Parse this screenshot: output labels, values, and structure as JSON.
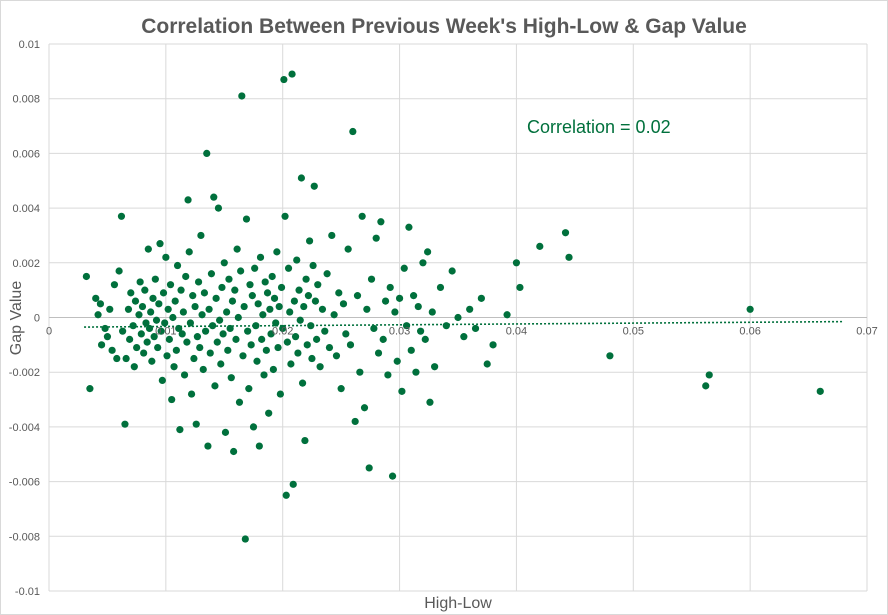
{
  "chart_data": {
    "type": "scatter",
    "title": "Correlation Between Previous Week's High-Low & Gap Value",
    "xlabel": "High-Low",
    "ylabel": "Gap Value",
    "xlim": [
      0,
      0.07
    ],
    "ylim": [
      -0.01,
      0.01
    ],
    "x_ticks": [
      "0",
      "0.01",
      "0.02",
      "0.03",
      "0.04",
      "0.05",
      "0.06",
      "0.07"
    ],
    "y_ticks": [
      "0.01",
      "0.008",
      "0.006",
      "0.004",
      "0.002",
      "0",
      "-0.002",
      "-0.004",
      "-0.006",
      "-0.008",
      "-0.01"
    ],
    "grid": true,
    "annotation": "Correlation = 0.02",
    "marker_color": "#00703c",
    "trendline": {
      "style": "dotted",
      "x": [
        0.003,
        0.068
      ],
      "y": [
        -0.00035,
        -0.00015
      ]
    },
    "points": [
      [
        0.0032,
        0.0015
      ],
      [
        0.0035,
        -0.0026
      ],
      [
        0.004,
        0.0007
      ],
      [
        0.0042,
        0.0001
      ],
      [
        0.0044,
        0.0005
      ],
      [
        0.0045,
        -0.001
      ],
      [
        0.0048,
        -0.0004
      ],
      [
        0.005,
        -0.0007
      ],
      [
        0.0052,
        0.0003
      ],
      [
        0.0054,
        -0.0012
      ],
      [
        0.0056,
        0.0012
      ],
      [
        0.0058,
        -0.0015
      ],
      [
        0.006,
        0.0017
      ],
      [
        0.0062,
        0.0037
      ],
      [
        0.0063,
        -0.0005
      ],
      [
        0.0065,
        -0.0039
      ],
      [
        0.0066,
        -0.0015
      ],
      [
        0.0068,
        0.0003
      ],
      [
        0.0069,
        -0.0008
      ],
      [
        0.007,
        0.0009
      ],
      [
        0.0072,
        -0.0003
      ],
      [
        0.0073,
        -0.0018
      ],
      [
        0.0074,
        0.0006
      ],
      [
        0.0075,
        -0.0011
      ],
      [
        0.0077,
        0.0001
      ],
      [
        0.0078,
        0.0013
      ],
      [
        0.0079,
        -0.0006
      ],
      [
        0.008,
        0.0004
      ],
      [
        0.0081,
        -0.0013
      ],
      [
        0.0082,
        0.001
      ],
      [
        0.0083,
        -0.0002
      ],
      [
        0.0084,
        -0.0009
      ],
      [
        0.0085,
        0.0025
      ],
      [
        0.0086,
        -0.0004
      ],
      [
        0.0087,
        0.0002
      ],
      [
        0.0088,
        -0.0016
      ],
      [
        0.0089,
        0.0007
      ],
      [
        0.009,
        -0.0007
      ],
      [
        0.0091,
        0.0014
      ],
      [
        0.0092,
        -0.0001
      ],
      [
        0.0093,
        -0.0011
      ],
      [
        0.0094,
        0.0005
      ],
      [
        0.0095,
        0.0027
      ],
      [
        0.0096,
        -0.0005
      ],
      [
        0.0097,
        -0.0023
      ],
      [
        0.0098,
        0.0009
      ],
      [
        0.0099,
        -0.0002
      ],
      [
        0.01,
        0.0022
      ],
      [
        0.0101,
        -0.0014
      ],
      [
        0.0102,
        0.0003
      ],
      [
        0.0103,
        -0.0008
      ],
      [
        0.0104,
        0.0012
      ],
      [
        0.0105,
        -0.003
      ],
      [
        0.0106,
        0.0
      ],
      [
        0.0107,
        -0.0018
      ],
      [
        0.0108,
        0.0006
      ],
      [
        0.0109,
        -0.0012
      ],
      [
        0.011,
        0.0019
      ],
      [
        0.0111,
        -0.0004
      ],
      [
        0.0112,
        -0.0041
      ],
      [
        0.0113,
        0.001
      ],
      [
        0.0114,
        -0.0006
      ],
      [
        0.0115,
        0.0002
      ],
      [
        0.0116,
        -0.0021
      ],
      [
        0.0117,
        0.0015
      ],
      [
        0.0118,
        -0.0009
      ],
      [
        0.0119,
        0.0043
      ],
      [
        0.012,
        0.0024
      ],
      [
        0.0121,
        -0.0002
      ],
      [
        0.0122,
        -0.0028
      ],
      [
        0.0123,
        0.0008
      ],
      [
        0.0124,
        -0.0015
      ],
      [
        0.0125,
        0.0004
      ],
      [
        0.0126,
        -0.0039
      ],
      [
        0.0127,
        -0.0007
      ],
      [
        0.0128,
        0.0013
      ],
      [
        0.0129,
        -0.0011
      ],
      [
        0.013,
        0.003
      ],
      [
        0.0131,
        0.0001
      ],
      [
        0.0132,
        -0.0019
      ],
      [
        0.0133,
        0.0009
      ],
      [
        0.0134,
        -0.0005
      ],
      [
        0.0135,
        0.006
      ],
      [
        0.0136,
        -0.0047
      ],
      [
        0.0137,
        0.0003
      ],
      [
        0.0138,
        -0.0013
      ],
      [
        0.0139,
        0.0016
      ],
      [
        0.014,
        -0.0003
      ],
      [
        0.0141,
        0.0044
      ],
      [
        0.0142,
        -0.0025
      ],
      [
        0.0143,
        0.0007
      ],
      [
        0.0144,
        -0.0009
      ],
      [
        0.0145,
        0.004
      ],
      [
        0.0146,
        -0.0001
      ],
      [
        0.0147,
        -0.0017
      ],
      [
        0.0148,
        0.0011
      ],
      [
        0.0149,
        -0.0006
      ],
      [
        0.015,
        0.002
      ],
      [
        0.0151,
        -0.0042
      ],
      [
        0.0152,
        0.0002
      ],
      [
        0.0153,
        -0.0012
      ],
      [
        0.0154,
        0.0014
      ],
      [
        0.0155,
        -0.0004
      ],
      [
        0.0156,
        -0.0022
      ],
      [
        0.0157,
        0.0006
      ],
      [
        0.0158,
        -0.0049
      ],
      [
        0.0159,
        0.001
      ],
      [
        0.016,
        -0.0008
      ],
      [
        0.0161,
        0.0025
      ],
      [
        0.0162,
        0.0
      ],
      [
        0.0163,
        -0.0031
      ],
      [
        0.0164,
        0.0017
      ],
      [
        0.0165,
        0.0081
      ],
      [
        0.0166,
        -0.0014
      ],
      [
        0.0167,
        0.0004
      ],
      [
        0.0168,
        -0.0081
      ],
      [
        0.0169,
        0.0036
      ],
      [
        0.017,
        -0.0005
      ],
      [
        0.0171,
        -0.0026
      ],
      [
        0.0172,
        0.0012
      ],
      [
        0.0173,
        -0.001
      ],
      [
        0.0174,
        0.0008
      ],
      [
        0.0175,
        -0.004
      ],
      [
        0.0176,
        0.0018
      ],
      [
        0.0177,
        -0.0003
      ],
      [
        0.0178,
        -0.0016
      ],
      [
        0.0179,
        0.0005
      ],
      [
        0.018,
        -0.0047
      ],
      [
        0.0181,
        0.0022
      ],
      [
        0.0182,
        -0.0008
      ],
      [
        0.0183,
        0.0001
      ],
      [
        0.0184,
        -0.0021
      ],
      [
        0.0185,
        0.0013
      ],
      [
        0.0186,
        -0.0012
      ],
      [
        0.0187,
        0.0009
      ],
      [
        0.0188,
        -0.0035
      ],
      [
        0.0189,
        0.0003
      ],
      [
        0.019,
        -0.0006
      ],
      [
        0.0191,
        0.0015
      ],
      [
        0.0192,
        -0.0019
      ],
      [
        0.0193,
        0.0007
      ],
      [
        0.0194,
        -0.0002
      ],
      [
        0.0195,
        0.0024
      ],
      [
        0.0196,
        -0.0011
      ],
      [
        0.0197,
        0.0004
      ],
      [
        0.0198,
        -0.0028
      ],
      [
        0.0199,
        0.0011
      ],
      [
        0.02,
        -0.0004
      ],
      [
        0.0201,
        0.0087
      ],
      [
        0.0202,
        0.0037
      ],
      [
        0.0203,
        -0.0065
      ],
      [
        0.0204,
        -0.0009
      ],
      [
        0.0205,
        0.0018
      ],
      [
        0.0206,
        0.0002
      ],
      [
        0.0207,
        -0.0017
      ],
      [
        0.0208,
        0.0089
      ],
      [
        0.0209,
        -0.0061
      ],
      [
        0.021,
        0.0006
      ],
      [
        0.0211,
        -0.0007
      ],
      [
        0.0212,
        0.0021
      ],
      [
        0.0213,
        -0.0013
      ],
      [
        0.0214,
        0.001
      ],
      [
        0.0215,
        -0.0001
      ],
      [
        0.0216,
        0.0051
      ],
      [
        0.0217,
        -0.0024
      ],
      [
        0.0218,
        0.0004
      ],
      [
        0.0219,
        -0.0045
      ],
      [
        0.022,
        0.0014
      ],
      [
        0.0221,
        -0.001
      ],
      [
        0.0222,
        0.0008
      ],
      [
        0.0223,
        0.0028
      ],
      [
        0.0224,
        -0.0003
      ],
      [
        0.0225,
        -0.0015
      ],
      [
        0.0226,
        0.0019
      ],
      [
        0.0227,
        0.0048
      ],
      [
        0.0228,
        0.0006
      ],
      [
        0.0229,
        -0.0008
      ],
      [
        0.023,
        0.0012
      ],
      [
        0.0232,
        -0.0018
      ],
      [
        0.0234,
        0.0003
      ],
      [
        0.0236,
        -0.0005
      ],
      [
        0.0238,
        0.0016
      ],
      [
        0.024,
        -0.0011
      ],
      [
        0.0242,
        0.003
      ],
      [
        0.0244,
        0.0001
      ],
      [
        0.0246,
        -0.0014
      ],
      [
        0.0248,
        0.0009
      ],
      [
        0.025,
        -0.0026
      ],
      [
        0.0252,
        0.0005
      ],
      [
        0.0254,
        -0.0006
      ],
      [
        0.0256,
        0.0025
      ],
      [
        0.0258,
        -0.001
      ],
      [
        0.026,
        0.0068
      ],
      [
        0.0262,
        -0.0038
      ],
      [
        0.0264,
        0.0008
      ],
      [
        0.0266,
        -0.002
      ],
      [
        0.0268,
        0.0037
      ],
      [
        0.027,
        -0.0033
      ],
      [
        0.0272,
        0.0003
      ],
      [
        0.0274,
        -0.0055
      ],
      [
        0.0276,
        0.0014
      ],
      [
        0.0278,
        -0.0004
      ],
      [
        0.028,
        0.0029
      ],
      [
        0.0282,
        -0.0013
      ],
      [
        0.0284,
        0.0035
      ],
      [
        0.0286,
        -0.0008
      ],
      [
        0.0288,
        0.0006
      ],
      [
        0.029,
        -0.0021
      ],
      [
        0.0292,
        0.0011
      ],
      [
        0.0294,
        -0.0058
      ],
      [
        0.0296,
        0.0002
      ],
      [
        0.0298,
        -0.0016
      ],
      [
        0.03,
        0.0007
      ],
      [
        0.0302,
        -0.0027
      ],
      [
        0.0304,
        0.0018
      ],
      [
        0.0306,
        -0.0003
      ],
      [
        0.0308,
        0.0033
      ],
      [
        0.031,
        -0.0012
      ],
      [
        0.0312,
        0.0008
      ],
      [
        0.0314,
        -0.002
      ],
      [
        0.0316,
        0.0004
      ],
      [
        0.0318,
        -0.0005
      ],
      [
        0.032,
        0.002
      ],
      [
        0.0322,
        -0.0008
      ],
      [
        0.0324,
        0.0024
      ],
      [
        0.0326,
        -0.0031
      ],
      [
        0.0328,
        0.0002
      ],
      [
        0.033,
        -0.0018
      ],
      [
        0.0335,
        0.0011
      ],
      [
        0.034,
        -0.0003
      ],
      [
        0.0345,
        0.0017
      ],
      [
        0.035,
        0.0
      ],
      [
        0.0355,
        -0.0007
      ],
      [
        0.036,
        0.0003
      ],
      [
        0.0365,
        -0.0004
      ],
      [
        0.037,
        0.0007
      ],
      [
        0.0375,
        -0.0017
      ],
      [
        0.038,
        -0.001
      ],
      [
        0.0392,
        0.0001
      ],
      [
        0.04,
        0.002
      ],
      [
        0.0403,
        0.0011
      ],
      [
        0.042,
        0.0026
      ],
      [
        0.0442,
        0.0031
      ],
      [
        0.0445,
        0.0022
      ],
      [
        0.048,
        -0.0014
      ],
      [
        0.06,
        0.0003
      ],
      [
        0.0562,
        -0.0025
      ],
      [
        0.0565,
        -0.0021
      ],
      [
        0.066,
        -0.0027
      ]
    ]
  }
}
